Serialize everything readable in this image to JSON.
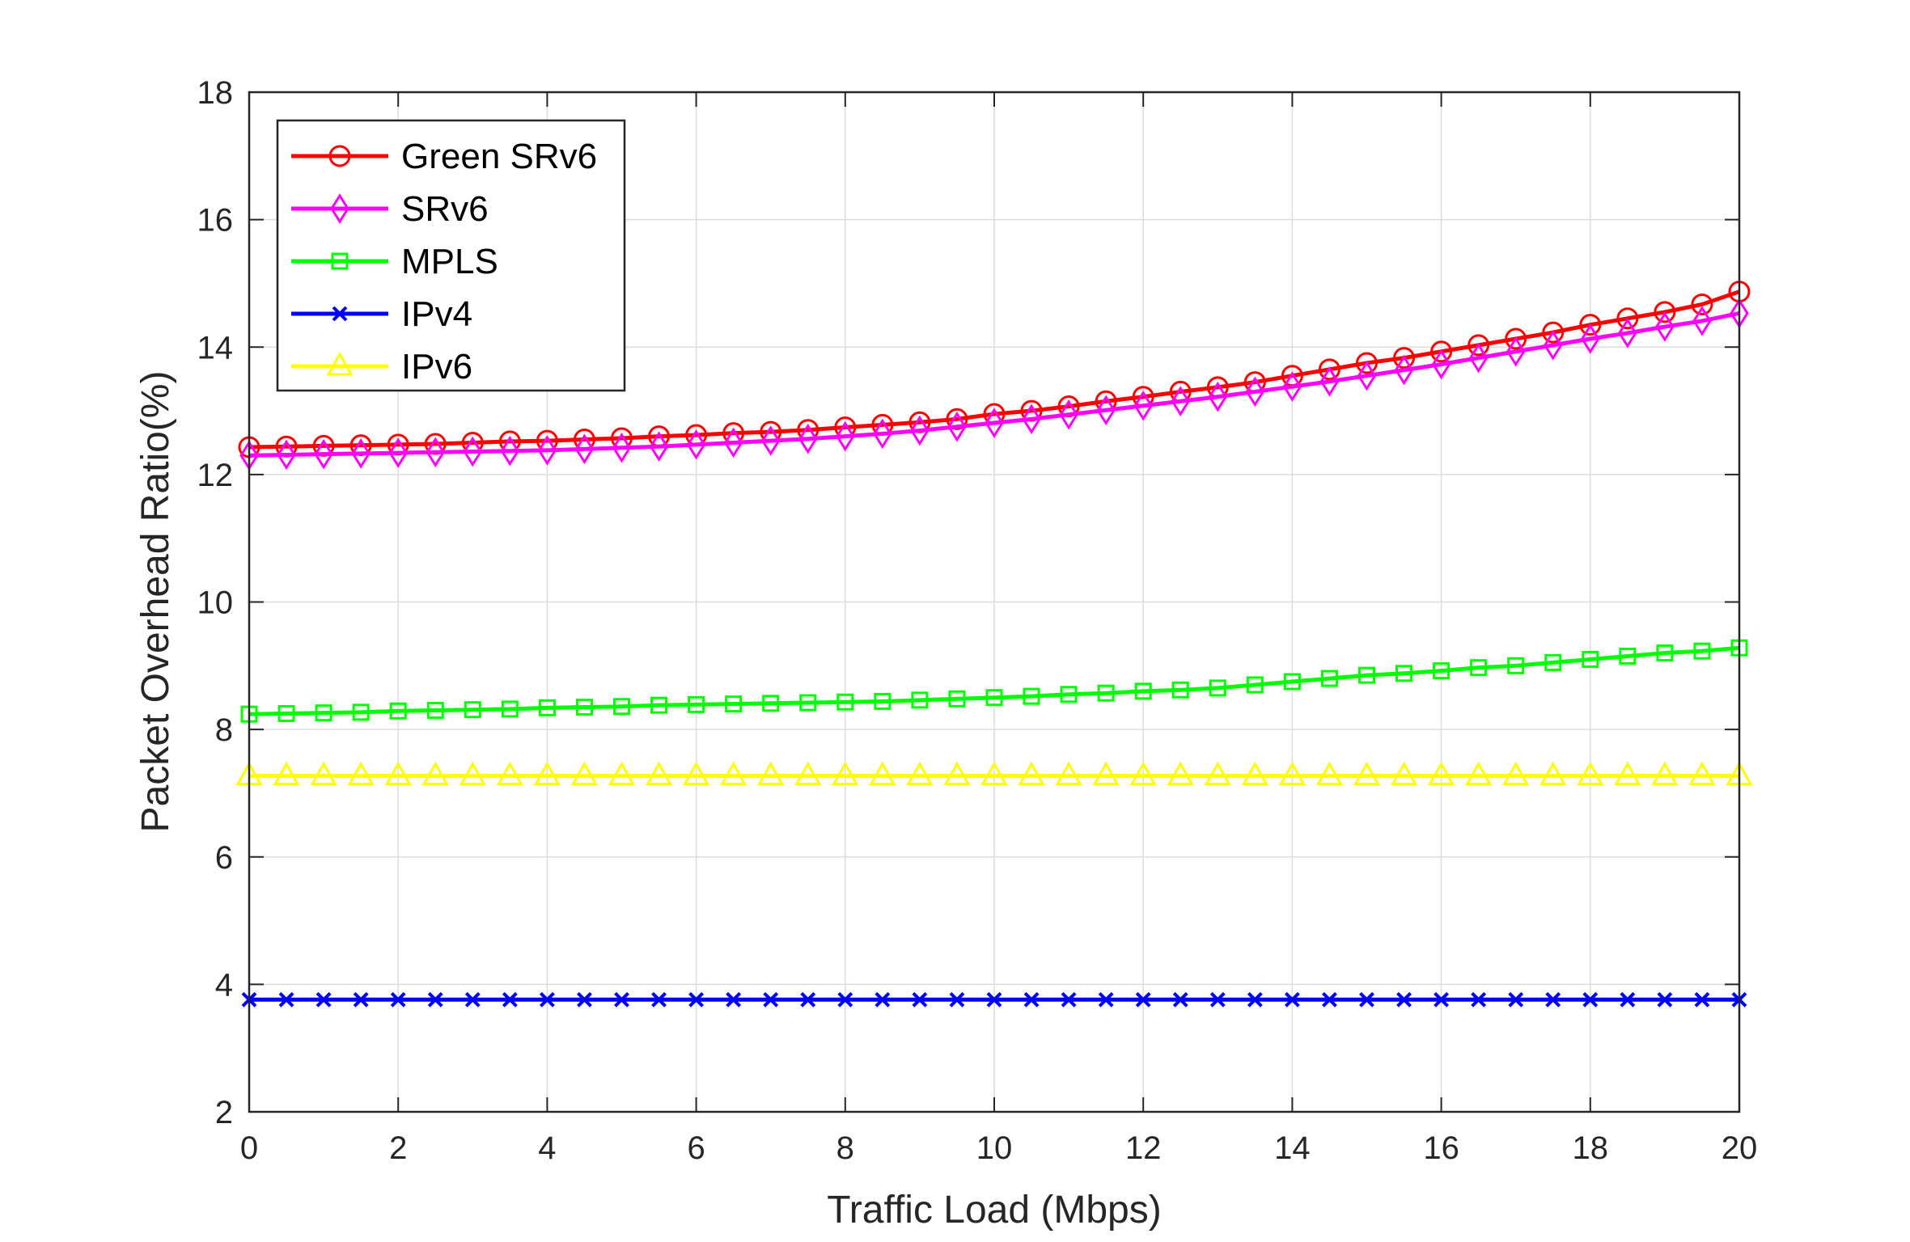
{
  "chart_data": {
    "type": "line",
    "xlabel": "Traffic Load (Mbps)",
    "ylabel": "Packet Overhead Ratio(%)",
    "xlim": [
      0,
      20
    ],
    "ylim": [
      2,
      18
    ],
    "xticks": [
      "0",
      "2",
      "4",
      "6",
      "8",
      "10",
      "12",
      "14",
      "16",
      "18",
      "20"
    ],
    "yticks": [
      "2",
      "4",
      "6",
      "8",
      "10",
      "12",
      "14",
      "16",
      "18"
    ],
    "grid": true,
    "legend_position": "top-left",
    "x": [
      0,
      0.5,
      1,
      1.5,
      2,
      2.5,
      3,
      3.5,
      4,
      4.5,
      5,
      5.5,
      6,
      6.5,
      7,
      7.5,
      8,
      8.5,
      9,
      9.5,
      10,
      10.5,
      11,
      11.5,
      12,
      12.5,
      13,
      13.5,
      14,
      14.5,
      15,
      15.5,
      16,
      16.5,
      17,
      17.5,
      18,
      18.5,
      19,
      19.5,
      20
    ],
    "series": [
      {
        "name": "Green SRv6",
        "color": "#ff0000",
        "marker": "circle",
        "values": [
          12.43,
          12.44,
          12.45,
          12.46,
          12.47,
          12.48,
          12.5,
          12.52,
          12.53,
          12.55,
          12.57,
          12.6,
          12.62,
          12.65,
          12.67,
          12.7,
          12.74,
          12.78,
          12.82,
          12.87,
          12.95,
          13.0,
          13.07,
          13.15,
          13.22,
          13.3,
          13.37,
          13.45,
          13.55,
          13.65,
          13.75,
          13.83,
          13.93,
          14.03,
          14.13,
          14.23,
          14.35,
          14.45,
          14.55,
          14.67,
          14.87
        ]
      },
      {
        "name": "SRv6",
        "color": "#ff00ff",
        "marker": "diamond",
        "values": [
          12.3,
          12.31,
          12.32,
          12.33,
          12.34,
          12.35,
          12.36,
          12.37,
          12.38,
          12.4,
          12.42,
          12.44,
          12.47,
          12.5,
          12.53,
          12.56,
          12.6,
          12.64,
          12.69,
          12.75,
          12.81,
          12.87,
          12.94,
          13.01,
          13.08,
          13.15,
          13.22,
          13.3,
          13.38,
          13.46,
          13.55,
          13.64,
          13.73,
          13.83,
          13.93,
          14.03,
          14.13,
          14.22,
          14.32,
          14.41,
          14.53
        ]
      },
      {
        "name": "MPLS",
        "color": "#00ff00",
        "marker": "square",
        "values": [
          8.24,
          8.25,
          8.26,
          8.27,
          8.29,
          8.3,
          8.31,
          8.32,
          8.34,
          8.35,
          8.36,
          8.38,
          8.39,
          8.4,
          8.41,
          8.42,
          8.43,
          8.44,
          8.46,
          8.48,
          8.5,
          8.52,
          8.55,
          8.57,
          8.6,
          8.62,
          8.65,
          8.7,
          8.75,
          8.8,
          8.85,
          8.88,
          8.92,
          8.97,
          9.0,
          9.05,
          9.1,
          9.15,
          9.2,
          9.23,
          9.28
        ]
      },
      {
        "name": "IPv4",
        "color": "#0000ff",
        "marker": "x",
        "values": [
          3.76,
          3.76,
          3.76,
          3.76,
          3.76,
          3.76,
          3.76,
          3.76,
          3.76,
          3.76,
          3.76,
          3.76,
          3.76,
          3.76,
          3.76,
          3.76,
          3.76,
          3.76,
          3.76,
          3.76,
          3.76,
          3.76,
          3.76,
          3.76,
          3.76,
          3.76,
          3.76,
          3.76,
          3.76,
          3.76,
          3.76,
          3.76,
          3.76,
          3.76,
          3.76,
          3.76,
          3.76,
          3.76,
          3.76,
          3.76,
          3.76
        ]
      },
      {
        "name": "IPv6",
        "color": "#ffff00",
        "marker": "triangle",
        "values": [
          7.27,
          7.27,
          7.27,
          7.27,
          7.27,
          7.27,
          7.27,
          7.27,
          7.27,
          7.27,
          7.27,
          7.27,
          7.27,
          7.27,
          7.27,
          7.27,
          7.27,
          7.27,
          7.27,
          7.27,
          7.27,
          7.27,
          7.27,
          7.27,
          7.27,
          7.27,
          7.27,
          7.27,
          7.27,
          7.27,
          7.27,
          7.27,
          7.27,
          7.27,
          7.27,
          7.27,
          7.27,
          7.27,
          7.27,
          7.27,
          7.27
        ]
      }
    ]
  }
}
